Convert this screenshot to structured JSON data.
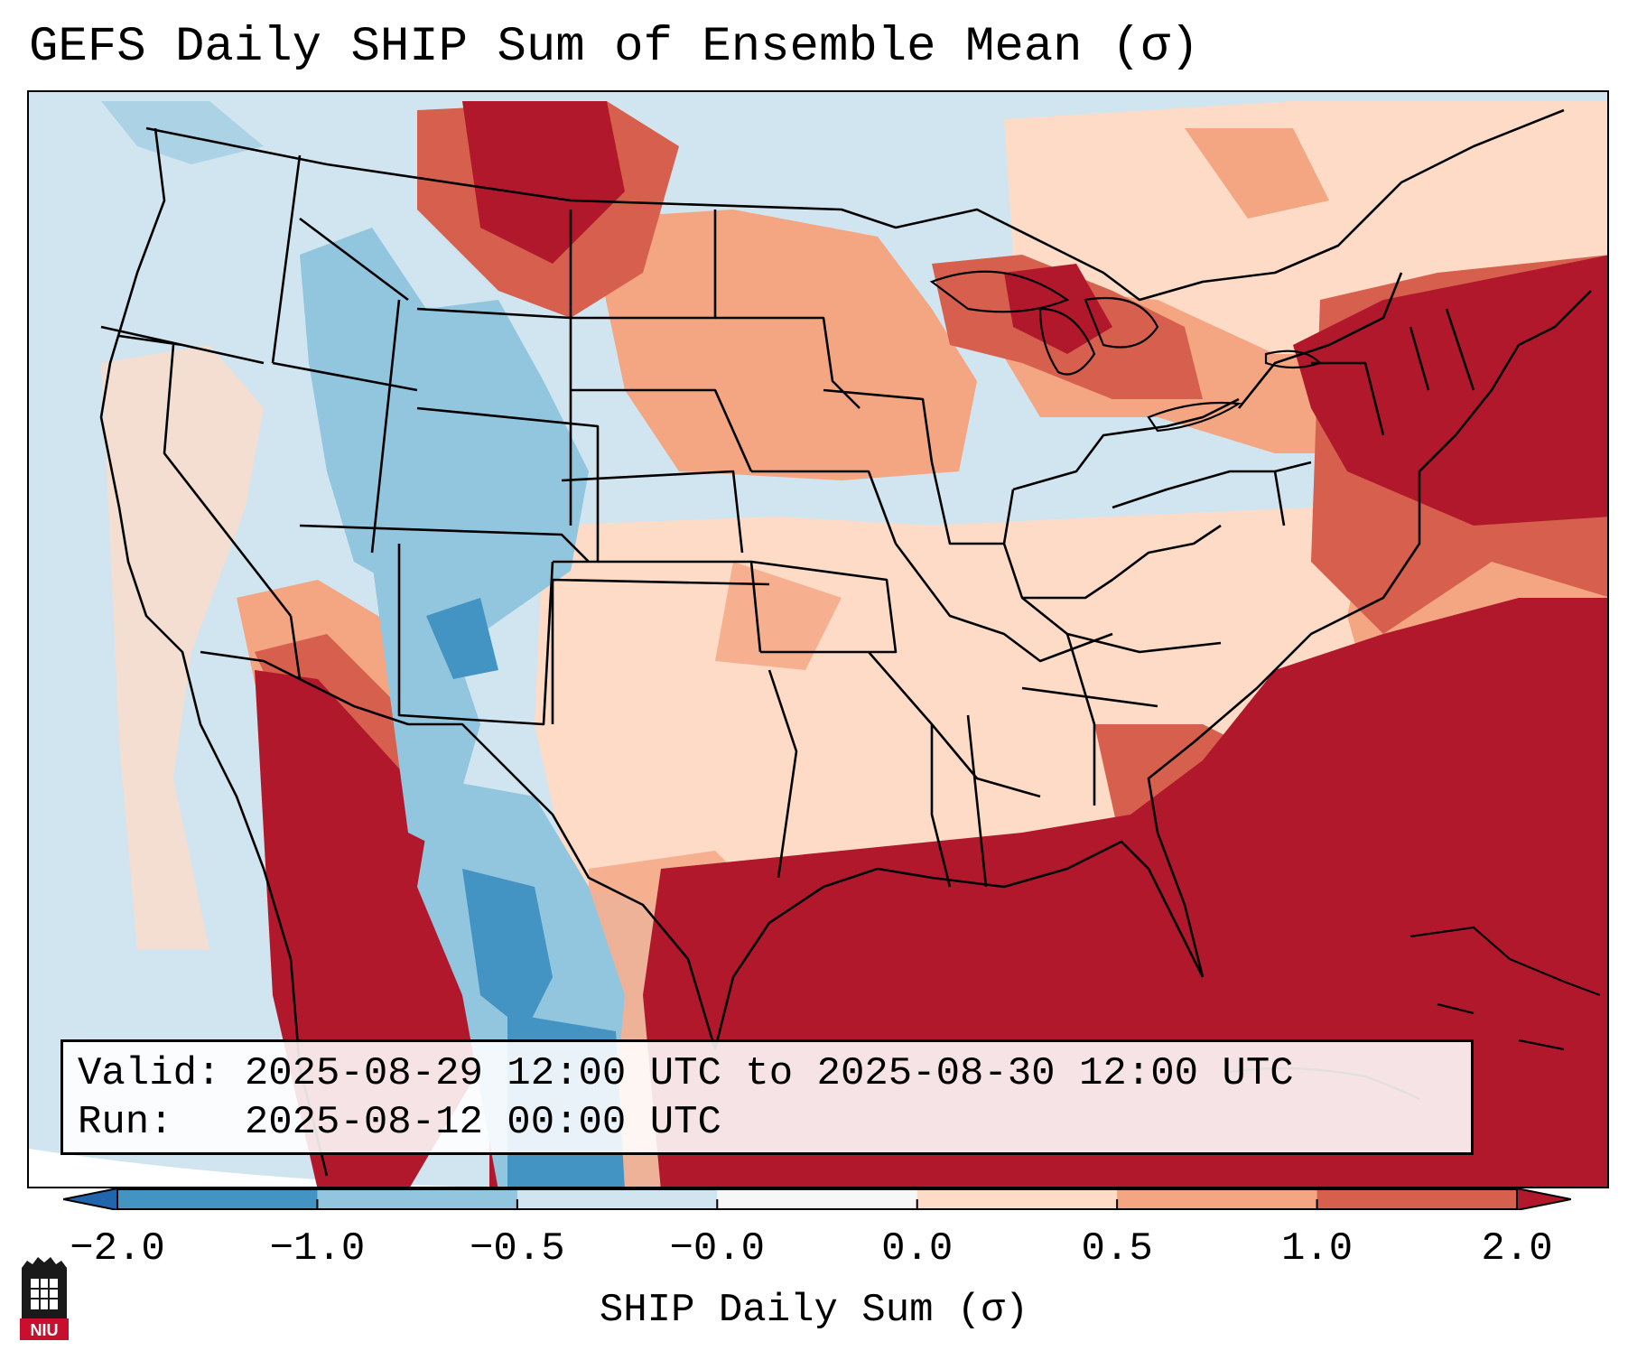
{
  "title": "GEFS Daily SHIP Sum of Ensemble Mean (σ)",
  "info": {
    "valid_label": "Valid:",
    "valid_value": "2025-08-29 12:00 UTC to 2025-08-30 12:00 UTC",
    "run_label": "Run:",
    "run_value": "2025-08-12 00:00 UTC"
  },
  "colorbar": {
    "label": "SHIP Daily Sum (σ)",
    "ticks": [
      "−2.0",
      "−1.0",
      "−0.5",
      "−0.0",
      "0.0",
      "0.5",
      "1.0",
      "2.0"
    ],
    "bin_colors": [
      "#2166ac",
      "#4393c3",
      "#92c5de",
      "#d1e5f0",
      "#f7f7f7",
      "#fddbc7",
      "#f4a582",
      "#d6604d",
      "#b2182b"
    ]
  },
  "logo": {
    "text": "NIU",
    "colors": {
      "red": "#c8102e",
      "black": "#1a1a1a"
    }
  },
  "map": {
    "region": "Continental United States",
    "ocean_color": "#d1e5f0",
    "border_color": "#000000"
  }
}
